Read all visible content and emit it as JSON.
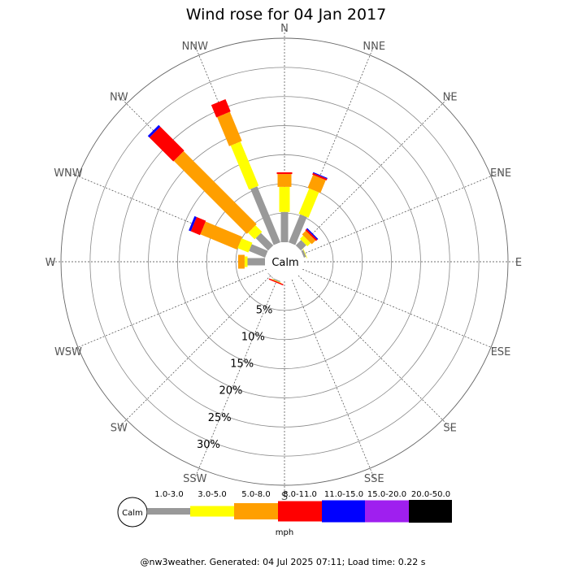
{
  "chart_data": {
    "type": "windrose",
    "title": "Wind rose for 04 Jan 2017",
    "directions": [
      "N",
      "NNE",
      "NE",
      "ENE",
      "E",
      "ESE",
      "SE",
      "SSE",
      "S",
      "SSW",
      "SW",
      "WSW",
      "W",
      "WNW",
      "NW",
      "NNW"
    ],
    "radial_ticks": [
      "5%",
      "10%",
      "15%",
      "20%",
      "25%",
      "30%"
    ],
    "rmax_percent": 35,
    "center_label": "Calm",
    "bins": [
      {
        "label": "1.0-3.0",
        "color": "#999999"
      },
      {
        "label": "3.0-5.0",
        "color": "#ffff00"
      },
      {
        "label": "5.0-8.0",
        "color": "#ff9f00"
      },
      {
        "label": "8.0-11.0",
        "color": "#ff0000"
      },
      {
        "label": "11.0-15.0",
        "color": "#0000ff"
      },
      {
        "label": "15.0-20.0",
        "color": "#9f1fef"
      },
      {
        "label": "20.0-50.0",
        "color": "#000000"
      }
    ],
    "speed_unit": "mph",
    "values": {
      "N": [
        5.2,
        4.3,
        2.2,
        0.3,
        0,
        0,
        0
      ],
      "NNE": [
        5.2,
        4.7,
        2.4,
        0.3,
        0.15,
        0,
        0
      ],
      "NE": [
        1.3,
        0.8,
        0.9,
        0.3,
        0.2,
        0,
        0
      ],
      "ENE": [
        0.4,
        0.1,
        0,
        0,
        0,
        0,
        0
      ],
      "E": [
        0,
        0,
        0,
        0,
        0,
        0,
        0
      ],
      "ESE": [
        0,
        0,
        0,
        0,
        0,
        0,
        0
      ],
      "SE": [
        0,
        0,
        0,
        0,
        0,
        0,
        0
      ],
      "SSE": [
        0,
        0,
        0,
        0,
        0,
        0,
        0
      ],
      "S": [
        0,
        0,
        0,
        0,
        0,
        0,
        0
      ],
      "SSW": [
        0.2,
        0.1,
        0,
        0.2,
        0,
        0,
        0
      ],
      "SW": [
        0.1,
        0,
        0,
        0,
        0,
        0,
        0
      ],
      "WSW": [
        0,
        0,
        0,
        0,
        0,
        0,
        0
      ],
      "W": [
        3.0,
        0.5,
        1.1,
        0,
        0,
        0,
        0
      ],
      "WNW": [
        3.0,
        2.0,
        6.8,
        1.7,
        0.4,
        0,
        0
      ],
      "NW": [
        3.0,
        1.6,
        17.7,
        5.8,
        0.4,
        0,
        0
      ],
      "NNW": [
        10.4,
        8.2,
        5.4,
        2.3,
        0,
        0,
        0
      ]
    },
    "grid": true
  },
  "legend": {
    "calm_label": "Calm",
    "unit": "mph"
  },
  "footer": "@nw3weather. Generated: 04 Jul 2025 07:11; Load time: 0.22 s"
}
